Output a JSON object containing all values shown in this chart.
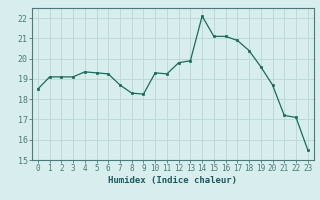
{
  "x": [
    0,
    1,
    2,
    3,
    4,
    5,
    6,
    7,
    8,
    9,
    10,
    11,
    12,
    13,
    14,
    15,
    16,
    17,
    18,
    19,
    20,
    21,
    22,
    23
  ],
  "y": [
    18.5,
    19.1,
    19.1,
    19.1,
    19.35,
    19.3,
    19.25,
    18.7,
    18.3,
    18.25,
    19.3,
    19.25,
    19.8,
    19.9,
    22.1,
    21.1,
    21.1,
    20.9,
    20.4,
    19.6,
    18.7,
    17.2,
    17.1,
    15.5
  ],
  "xlabel": "Humidex (Indice chaleur)",
  "line_color": "#1a6b5a",
  "marker_color": "#1a6b5a",
  "bg_color": "#d8eeee",
  "grid_color": "#b8d8d0",
  "axis_color": "#4a7a7a",
  "tick_label_color": "#1a5a5a",
  "xlim": [
    -0.5,
    23.5
  ],
  "ylim": [
    15,
    22.5
  ],
  "yticks": [
    15,
    16,
    17,
    18,
    19,
    20,
    21,
    22
  ],
  "xticks": [
    0,
    1,
    2,
    3,
    4,
    5,
    6,
    7,
    8,
    9,
    10,
    11,
    12,
    13,
    14,
    15,
    16,
    17,
    18,
    19,
    20,
    21,
    22,
    23
  ],
  "xlabel_fontsize": 6.5,
  "tick_fontsize": 5.5,
  "ytick_fontsize": 6.0
}
